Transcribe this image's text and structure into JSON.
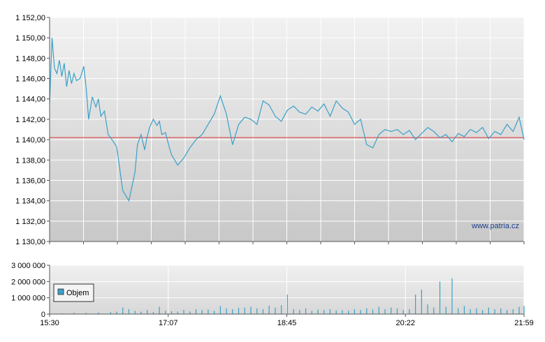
{
  "watermark": "www.patria.cz",
  "chart_data": [
    {
      "type": "line",
      "title": "",
      "xlabel": "",
      "ylabel": "",
      "ylim": [
        1130,
        1152
      ],
      "y_ticks": [
        "1 130,00",
        "1 132,00",
        "1 134,00",
        "1 136,00",
        "1 138,00",
        "1 140,00",
        "1 142,00",
        "1 144,00",
        "1 146,00",
        "1 148,00",
        "1 150,00",
        "1 152,00"
      ],
      "x_range_minutes": [
        0,
        389
      ],
      "reference_line": {
        "value": 1140.2,
        "color": "#e03030"
      },
      "series": [
        {
          "color": "#3aa0c8",
          "x": [
            0,
            2,
            4,
            6,
            8,
            10,
            12,
            14,
            16,
            18,
            20,
            22,
            25,
            28,
            30,
            32,
            35,
            38,
            40,
            42,
            45,
            48,
            50,
            55,
            60,
            65,
            70,
            72,
            75,
            78,
            80,
            82,
            85,
            88,
            90,
            92,
            95,
            98,
            100,
            105,
            110,
            115,
            120,
            125,
            130,
            135,
            140,
            145,
            150,
            155,
            160,
            165,
            170,
            175,
            180,
            185,
            190,
            195,
            200,
            205,
            210,
            215,
            220,
            225,
            230,
            235,
            240,
            245,
            250,
            255,
            260,
            265,
            270,
            275,
            280,
            285,
            290,
            295,
            300,
            305,
            310,
            315,
            320,
            325,
            330,
            335,
            340,
            345,
            350,
            355,
            360,
            365,
            370,
            375,
            380,
            385,
            389
          ],
          "y": [
            1143.5,
            1150,
            1147,
            1146.5,
            1147.8,
            1146.2,
            1147.5,
            1145.2,
            1146.8,
            1145.5,
            1146.5,
            1145.8,
            1146,
            1147.2,
            1145,
            1142,
            1144.2,
            1143.2,
            1144,
            1142.3,
            1142.8,
            1140.5,
            1140.2,
            1139.3,
            1135,
            1134,
            1136.8,
            1139.5,
            1140.5,
            1139,
            1140.3,
            1141.2,
            1142,
            1141.4,
            1141.8,
            1140.5,
            1140.7,
            1139.3,
            1138.5,
            1137.5,
            1138.2,
            1139.2,
            1140,
            1140.5,
            1141.5,
            1142.5,
            1144.3,
            1142.5,
            1139.5,
            1141.5,
            1142.2,
            1142,
            1141.5,
            1143.8,
            1143.4,
            1142.3,
            1141.8,
            1142.9,
            1143.3,
            1142.7,
            1142.5,
            1143.2,
            1142.8,
            1143.5,
            1142.3,
            1143.8,
            1143.1,
            1142.7,
            1141.5,
            1142,
            1139.5,
            1139.2,
            1140.5,
            1141,
            1140.8,
            1141,
            1140.5,
            1140.9,
            1140,
            1140.6,
            1141.2,
            1140.8,
            1140.2,
            1140.5,
            1139.8,
            1140.6,
            1140.3,
            1141,
            1140.7,
            1141.2,
            1140.1,
            1140.8,
            1140.5,
            1141.5,
            1140.8,
            1142.2,
            1140
          ]
        }
      ]
    },
    {
      "type": "bar",
      "title": "",
      "xlabel": "",
      "ylabel": "",
      "ylim": [
        0,
        3000000
      ],
      "y_ticks": [
        "0",
        "1 000 000",
        "2 000 000",
        "3 000 000"
      ],
      "x_ticks": [
        "15:30",
        "17:07",
        "18:45",
        "20:22",
        "21:59"
      ],
      "x_range_minutes": [
        0,
        389
      ],
      "legend": {
        "label": "Objem",
        "color": "#3aa0c8",
        "placement": "left"
      },
      "series": [
        {
          "name": "Objem",
          "color": "#3aa0c8",
          "x": [
            0,
            10,
            20,
            30,
            40,
            50,
            55,
            60,
            65,
            70,
            75,
            80,
            85,
            90,
            95,
            100,
            105,
            110,
            115,
            120,
            125,
            130,
            135,
            140,
            145,
            150,
            155,
            160,
            165,
            170,
            175,
            180,
            185,
            190,
            195,
            200,
            205,
            210,
            215,
            220,
            225,
            230,
            235,
            240,
            245,
            250,
            255,
            260,
            265,
            270,
            275,
            280,
            285,
            290,
            295,
            300,
            305,
            310,
            315,
            320,
            325,
            330,
            335,
            340,
            345,
            350,
            355,
            360,
            365,
            370,
            375,
            380,
            385,
            389
          ],
          "values": [
            60000,
            50000,
            80000,
            70000,
            90000,
            120000,
            150000,
            400000,
            300000,
            200000,
            150000,
            250000,
            120000,
            450000,
            200000,
            180000,
            150000,
            260000,
            160000,
            300000,
            250000,
            280000,
            200000,
            500000,
            350000,
            300000,
            380000,
            400000,
            450000,
            350000,
            300000,
            520000,
            400000,
            550000,
            1200000,
            300000,
            250000,
            350000,
            200000,
            280000,
            250000,
            300000,
            220000,
            250000,
            200000,
            300000,
            250000,
            350000,
            280000,
            450000,
            300000,
            400000,
            350000,
            250000,
            300000,
            1200000,
            1500000,
            600000,
            400000,
            2000000,
            450000,
            2200000,
            350000,
            500000,
            300000,
            350000,
            250000,
            400000,
            300000,
            350000,
            250000,
            300000,
            450000,
            500000
          ]
        }
      ]
    }
  ]
}
